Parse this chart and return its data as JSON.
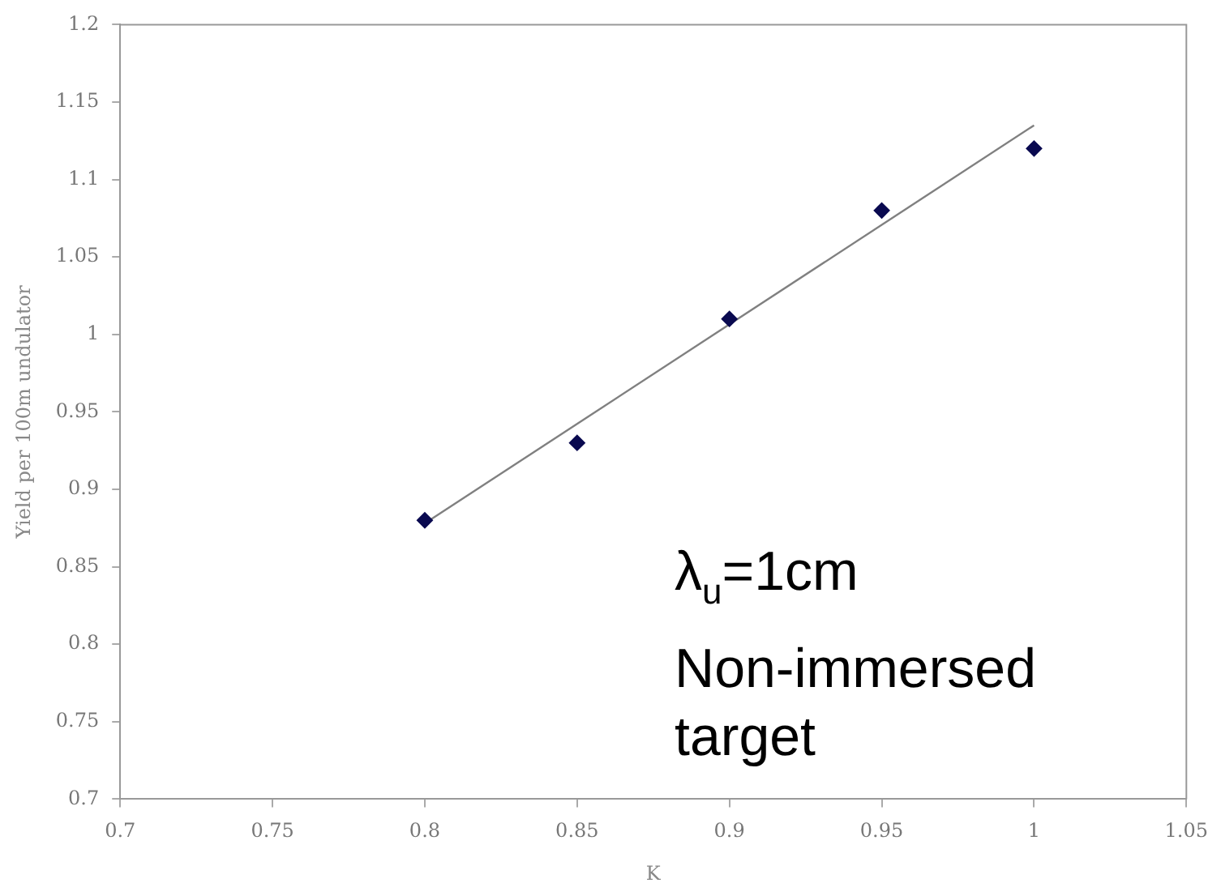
{
  "chart_data": {
    "type": "scatter",
    "xlabel": "K",
    "ylabel": "Yield per 100m undulator",
    "x": [
      0.8,
      0.85,
      0.9,
      0.95,
      1.0
    ],
    "series": [
      {
        "color": "#0a0a50",
        "values": [
          0.88,
          0.93,
          1.01,
          1.08,
          1.12
        ],
        "marker": "diamond"
      },
      {
        "type": "line",
        "color": "#808080",
        "x": [
          0.8,
          1.0
        ],
        "values": [
          0.878,
          1.135
        ],
        "marker": "none"
      }
    ],
    "xlim": [
      0.7,
      1.05
    ],
    "xticks": [
      0.7,
      0.75,
      0.8,
      0.85,
      0.9,
      0.95,
      1,
      1.05
    ],
    "ylim": [
      0.7,
      1.2
    ],
    "yticks": [
      0.7,
      0.75,
      0.8,
      0.85,
      0.9,
      0.95,
      1,
      1.05,
      1.1,
      1.15,
      1.2
    ],
    "grid": false,
    "legend": false,
    "annotations": [
      "λ$_{u}$=1cm",
      "Non-immersed target"
    ]
  }
}
